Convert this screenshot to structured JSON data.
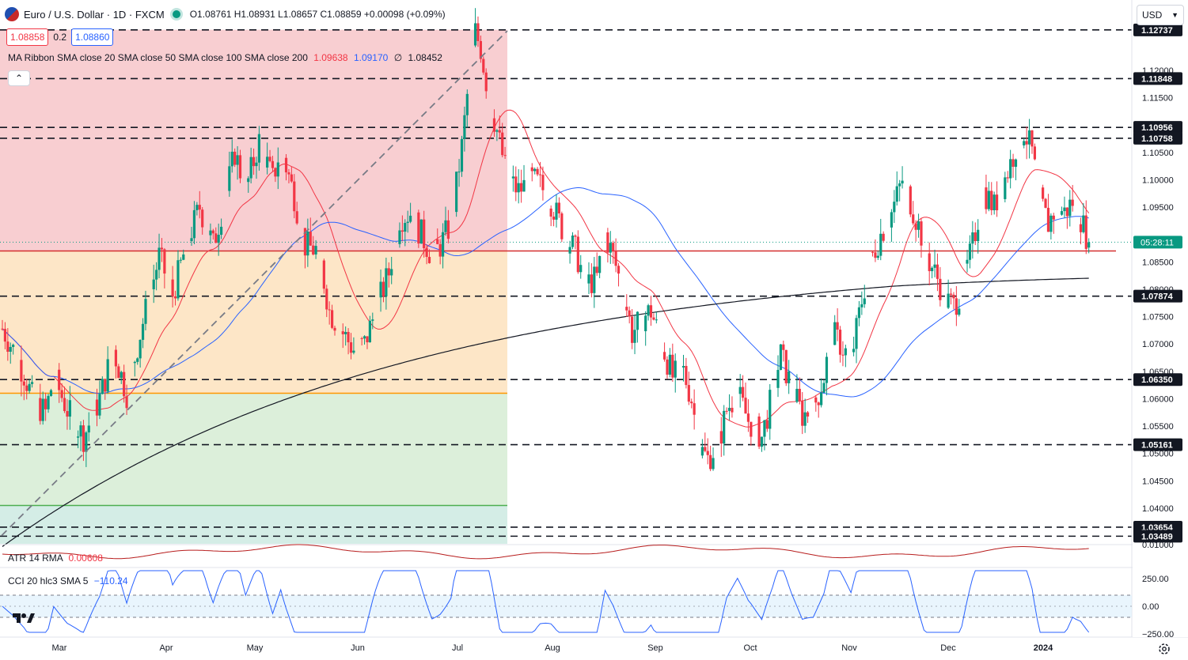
{
  "header": {
    "symbol": "Euro / U.S. Dollar · 1D · FXCM",
    "ohlc": "O1.08761 H1.08931 L1.08657 C1.08859 +0.00098 (+0.09%)",
    "bid": "1.08858",
    "spread": "0.2",
    "ask": "1.08860",
    "currency": "USD",
    "collapse_icon": "chevron-up-icon"
  },
  "legend": {
    "label": "MA Ribbon SMA close 20 SMA close 50 SMA close 100 SMA close 200",
    "v1": "1.09638",
    "v2": "1.09170",
    "v3": "∅",
    "v4": "1.08452"
  },
  "atr": {
    "label": "ATR 14 RMA",
    "value": "0.00608"
  },
  "cci": {
    "label": "CCI 20 hlc3 SMA 5",
    "value": "−110.24"
  },
  "colors": {
    "up": "#089981",
    "down": "#f23645",
    "sma20": "#f23645",
    "sma100": "#2962ff",
    "sma200": "#131722",
    "fib_red": "#f7c6c9",
    "fib_orange": "#fde2bd",
    "fib_green": "#d6ecd4",
    "fib_teal": "#cdeae2",
    "fib_line_red": "#d32f2f",
    "fib_line_orange": "#ff9800",
    "fib_line_green": "#4caf50"
  },
  "chart_data": [
    {
      "type": "candlestick",
      "title": "Euro / U.S. Dollar · 1D · FXCM",
      "x_labels": [
        "Mar",
        "Apr",
        "May",
        "Jun",
        "Jul",
        "Aug",
        "Sep",
        "Oct",
        "Nov",
        "Dec",
        "2024"
      ],
      "y_ticks": [
        "1.12000",
        "1.11500",
        "1.10500",
        "1.10000",
        "1.09500",
        "1.08500",
        "1.08000",
        "1.07500",
        "1.07000",
        "1.06500",
        "1.06000",
        "1.05500",
        "1.05000",
        "1.04500",
        "1.04000"
      ],
      "ylim": [
        1.0335,
        1.1285
      ],
      "horizontal_levels": [
        "1.12737",
        "1.11848",
        "1.10956",
        "1.10758",
        "1.07874",
        "1.06350",
        "1.05161",
        "1.03654",
        "1.03489"
      ],
      "last_price_label": "1.08859",
      "countdown": "05:28:11",
      "path": [
        [
          0,
          1.0728
        ],
        [
          4,
          1.069
        ],
        [
          8,
          1.0645
        ],
        [
          12,
          1.059
        ],
        [
          16,
          1.0575
        ],
        [
          19,
          1.064
        ],
        [
          24,
          1.058
        ],
        [
          30,
          1.053
        ],
        [
          36,
          1.06
        ],
        [
          41,
          1.069
        ],
        [
          46,
          1.061
        ],
        [
          52,
          1.074
        ],
        [
          58,
          1.086
        ],
        [
          63,
          1.079
        ],
        [
          68,
          1.088
        ],
        [
          73,
          1.095
        ],
        [
          78,
          1.088
        ],
        [
          83,
          1.098
        ],
        [
          86,
          1.105
        ],
        [
          90,
          1.098
        ],
        [
          95,
          1.107
        ],
        [
          100,
          1.1
        ],
        [
          103,
          1.106
        ],
        [
          108,
          1.097
        ],
        [
          112,
          1.088
        ],
        [
          117,
          1.087
        ],
        [
          121,
          1.076
        ],
        [
          126,
          1.072
        ],
        [
          130,
          1.069
        ],
        [
          134,
          1.07
        ],
        [
          138,
          1.076
        ],
        [
          143,
          1.083
        ],
        [
          147,
          1.093
        ],
        [
          151,
          1.094
        ],
        [
          155,
          1.09
        ],
        [
          159,
          1.086
        ],
        [
          162,
          1.088
        ],
        [
          166,
          1.092
        ],
        [
          170,
          1.106
        ],
        [
          173,
          1.12
        ],
        [
          175,
          1.127
        ],
        [
          177,
          1.124
        ],
        [
          180,
          1.115
        ],
        [
          183,
          1.109
        ],
        [
          187,
          1.1
        ],
        [
          191,
          1.098
        ],
        [
          196,
          1.1
        ],
        [
          199,
          1.099
        ],
        [
          203,
          1.096
        ],
        [
          208,
          1.09
        ],
        [
          212,
          1.087
        ],
        [
          216,
          1.081
        ],
        [
          220,
          1.082
        ],
        [
          223,
          1.09
        ],
        [
          226,
          1.086
        ],
        [
          230,
          1.079
        ],
        [
          233,
          1.072
        ],
        [
          237,
          1.075
        ],
        [
          240,
          1.076
        ],
        [
          244,
          1.07
        ],
        [
          248,
          1.064
        ],
        [
          252,
          1.065
        ],
        [
          255,
          1.06
        ],
        [
          258,
          1.051
        ],
        [
          261,
          1.049
        ],
        [
          265,
          1.052
        ],
        [
          268,
          1.058
        ],
        [
          272,
          1.061
        ],
        [
          276,
          1.056
        ],
        [
          281,
          1.053
        ],
        [
          285,
          1.061
        ],
        [
          288,
          1.068
        ],
        [
          292,
          1.062
        ],
        [
          296,
          1.057
        ],
        [
          300,
          1.058
        ],
        [
          304,
          1.064
        ],
        [
          307,
          1.072
        ],
        [
          310,
          1.07
        ],
        [
          314,
          1.067
        ],
        [
          318,
          1.078
        ],
        [
          321,
          1.085
        ],
        [
          325,
          1.09
        ],
        [
          329,
          1.094
        ],
        [
          333,
          1.1
        ],
        [
          336,
          1.096
        ],
        [
          340,
          1.09
        ],
        [
          343,
          1.085
        ],
        [
          346,
          1.082
        ],
        [
          349,
          1.078
        ],
        [
          352,
          1.077
        ],
        [
          355,
          1.08
        ],
        [
          359,
          1.088
        ],
        [
          363,
          1.098
        ],
        [
          367,
          1.095
        ],
        [
          370,
          1.099
        ],
        [
          373,
          1.103
        ],
        [
          375,
          1.106
        ],
        [
          378,
          1.109
        ],
        [
          381,
          1.105
        ],
        [
          384,
          1.096
        ],
        [
          387,
          1.092
        ],
        [
          390,
          1.095
        ],
        [
          393,
          1.094
        ],
        [
          396,
          1.096
        ],
        [
          399,
          1.093
        ],
        [
          402,
          1.0885
        ]
      ]
    },
    {
      "type": "line",
      "title": "ATR 14 RMA",
      "series": [
        {
          "name": "ATR 14 RMA",
          "values": [
            0.00608
          ]
        }
      ]
    },
    {
      "type": "line",
      "title": "CCI 20 hlc3 SMA 5",
      "y_ticks": [
        "250.00",
        "0.00",
        "−250.00"
      ],
      "series": [
        {
          "name": "CCI 20 hlc3 SMA 5",
          "values": [
            -110.24
          ]
        }
      ]
    }
  ]
}
